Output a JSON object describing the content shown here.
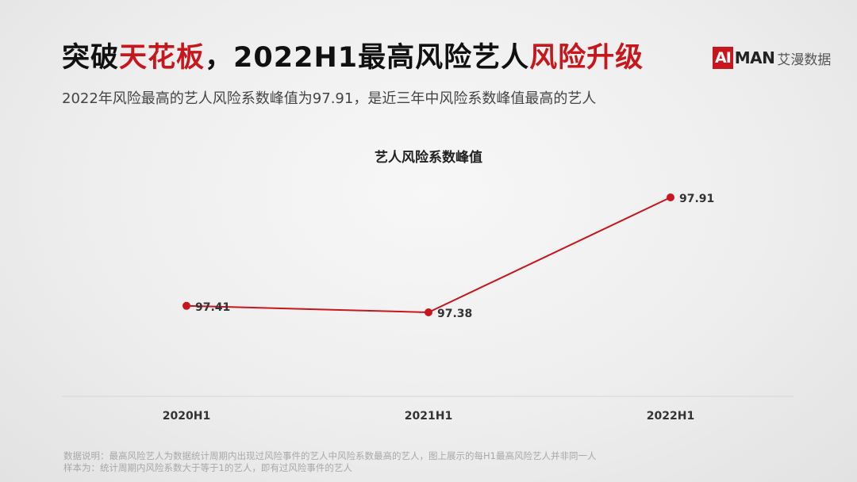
{
  "header": {
    "title_part1": "突破",
    "title_highlight1": "天花板",
    "title_part2": "，2022H1最高风险艺人",
    "title_highlight2": "风险升级",
    "subtitle": "2022年风险最高的艺人风险系数峰值为97.91，是近三年中风险系数峰值最高的艺人",
    "accent_color": "#c8161d"
  },
  "logo": {
    "ai": "AI",
    "man": "MAN",
    "cn": "艾漫数据"
  },
  "chart_data": {
    "type": "line",
    "title": "艺人风险系数峰值",
    "categories": [
      "2020H1",
      "2021H1",
      "2022H1"
    ],
    "series": [
      {
        "values": [
          97.41,
          97.38,
          97.91
        ],
        "color": "#c8161d"
      }
    ],
    "data_labels": [
      "97.41",
      "97.38",
      "97.91"
    ],
    "grid": false
  },
  "notes": {
    "line1": "数据说明：最高风险艺人为数据统计周期内出现过风险事件的艺人中风险系数最高的艺人，图上展示的每H1最高风险艺人并非同一人",
    "line2": "样本为：统计周期内风险系数大于等于1的艺人，即有过风险事件的艺人"
  }
}
